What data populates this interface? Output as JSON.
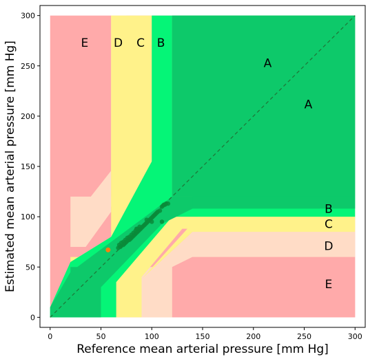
{
  "chart_data": {
    "type": "scatter",
    "title": "",
    "xlabel": "Reference mean arterial pressure [mm Hg]",
    "ylabel": "Estimated mean arterial pressure [mm Hg]",
    "xlim": [
      -10,
      310
    ],
    "ylim": [
      -10,
      310
    ],
    "x_ticks": [
      0,
      50,
      100,
      150,
      200,
      250,
      300
    ],
    "y_ticks": [
      0,
      50,
      100,
      150,
      200,
      250,
      300
    ],
    "grid": false,
    "legend": "none",
    "identity_line": {
      "from": [
        0,
        0
      ],
      "to": [
        300,
        300
      ],
      "color": "#1e7a3a",
      "style": "dashed"
    },
    "zone_colors": {
      "A": "#0dc96a",
      "B": "#05f577",
      "C": "#fff28a",
      "D": "#ffdcc6",
      "E": "#ffaaaa"
    },
    "zones": [
      {
        "zone": "E",
        "polygon": [
          [
            0,
            0
          ],
          [
            300,
            0
          ],
          [
            300,
            300
          ],
          [
            0,
            300
          ]
        ]
      },
      {
        "zone": "D",
        "polygon": [
          [
            20,
            0
          ],
          [
            300,
            0
          ],
          [
            300,
            85
          ],
          [
            140,
            85
          ],
          [
            100,
            60
          ],
          [
            100,
            0
          ],
          [
            90,
            0
          ],
          [
            90,
            38
          ],
          [
            60,
            70
          ],
          [
            20,
            70
          ]
        ]
      },
      {
        "zone": "D",
        "polygon": [
          [
            20,
            70
          ],
          [
            60,
            70
          ],
          [
            60,
            300
          ],
          [
            75,
            300
          ],
          [
            75,
            165
          ],
          [
            40,
            120
          ],
          [
            20,
            120
          ]
        ]
      },
      {
        "zone": "D",
        "polygon": [
          [
            0,
            0
          ],
          [
            300,
            0
          ],
          [
            300,
            300
          ],
          [
            0,
            300
          ]
        ],
        "clip": "upper-left-inner"
      },
      {
        "zone": "C",
        "polygon": [
          [
            20,
            0
          ],
          [
            300,
            0
          ],
          [
            300,
            100
          ],
          [
            145,
            100
          ],
          [
            110,
            88
          ],
          [
            90,
            88
          ],
          [
            90,
            0
          ]
        ]
      },
      {
        "zone": "C",
        "polygon": [
          [
            20,
            0
          ],
          [
            20,
            60
          ],
          [
            75,
            300
          ],
          [
            100,
            300
          ],
          [
            100,
            155
          ],
          [
            60,
            90
          ],
          [
            20,
            65
          ]
        ]
      },
      {
        "zone": "B",
        "polygon": [
          [
            0,
            0
          ],
          [
            65,
            0
          ],
          [
            65,
            35
          ],
          [
            120,
            100
          ],
          [
            300,
            100
          ],
          [
            300,
            120
          ],
          [
            140,
            120
          ],
          [
            120,
            115
          ],
          [
            120,
            300
          ],
          [
            100,
            300
          ],
          [
            100,
            155
          ],
          [
            60,
            80
          ],
          [
            20,
            55
          ],
          [
            0,
            10
          ]
        ]
      },
      {
        "zone": "A",
        "polygon": [
          [
            0,
            0
          ],
          [
            50,
            0
          ],
          [
            50,
            30
          ],
          [
            110,
            93
          ],
          [
            140,
            108
          ],
          [
            300,
            108
          ],
          [
            300,
            120
          ],
          [
            120,
            120
          ],
          [
            120,
            300
          ],
          [
            300,
            300
          ]
        ]
      }
    ],
    "zone_labels": [
      {
        "text": "E",
        "x": 34,
        "y": 273
      },
      {
        "text": "D",
        "x": 67,
        "y": 273
      },
      {
        "text": "C",
        "x": 89,
        "y": 273
      },
      {
        "text": "B",
        "x": 109,
        "y": 273
      },
      {
        "text": "A",
        "x": 214,
        "y": 253
      },
      {
        "text": "A",
        "x": 254,
        "y": 212
      },
      {
        "text": "B",
        "x": 274,
        "y": 108
      },
      {
        "text": "C",
        "x": 274,
        "y": 93
      },
      {
        "text": "D",
        "x": 274,
        "y": 71
      },
      {
        "text": "E",
        "x": 274,
        "y": 33
      }
    ],
    "point_color": "#0a8a3a",
    "outlier_color": "#ff7f0e",
    "points": [
      [
        67,
        69
      ],
      [
        69,
        70
      ],
      [
        70,
        71
      ],
      [
        72,
        72
      ],
      [
        73,
        73
      ],
      [
        74,
        74
      ],
      [
        75,
        75
      ],
      [
        76,
        76
      ],
      [
        77,
        77
      ],
      [
        78,
        77
      ],
      [
        79,
        78
      ],
      [
        80,
        79
      ],
      [
        81,
        80
      ],
      [
        82,
        81
      ],
      [
        83,
        82
      ],
      [
        84,
        83
      ],
      [
        85,
        84
      ],
      [
        86,
        85
      ],
      [
        87,
        86
      ],
      [
        88,
        87
      ],
      [
        89,
        88
      ],
      [
        90,
        89
      ],
      [
        91,
        90
      ],
      [
        92,
        91
      ],
      [
        93,
        92
      ],
      [
        94,
        93
      ],
      [
        95,
        94
      ],
      [
        96,
        95
      ],
      [
        97,
        96
      ],
      [
        98,
        97
      ],
      [
        99,
        98
      ],
      [
        100,
        99
      ],
      [
        101,
        100
      ],
      [
        102,
        101
      ],
      [
        103,
        102
      ],
      [
        104,
        103
      ],
      [
        105,
        104
      ],
      [
        106,
        105
      ],
      [
        108,
        106
      ],
      [
        110,
        110
      ],
      [
        111,
        111
      ],
      [
        112,
        112
      ],
      [
        113,
        112
      ],
      [
        114,
        113
      ],
      [
        116,
        113
      ],
      [
        110,
        95
      ],
      [
        100,
        95
      ],
      [
        95,
        97
      ],
      [
        88,
        90
      ],
      [
        85,
        88
      ],
      [
        78,
        80
      ],
      [
        76,
        79
      ],
      [
        74,
        77
      ],
      [
        72,
        75
      ],
      [
        70,
        74
      ],
      [
        68,
        72
      ],
      [
        80,
        82
      ],
      [
        82,
        84
      ],
      [
        84,
        86
      ],
      [
        86,
        88
      ]
    ],
    "outliers": [
      [
        57,
        67
      ]
    ]
  }
}
